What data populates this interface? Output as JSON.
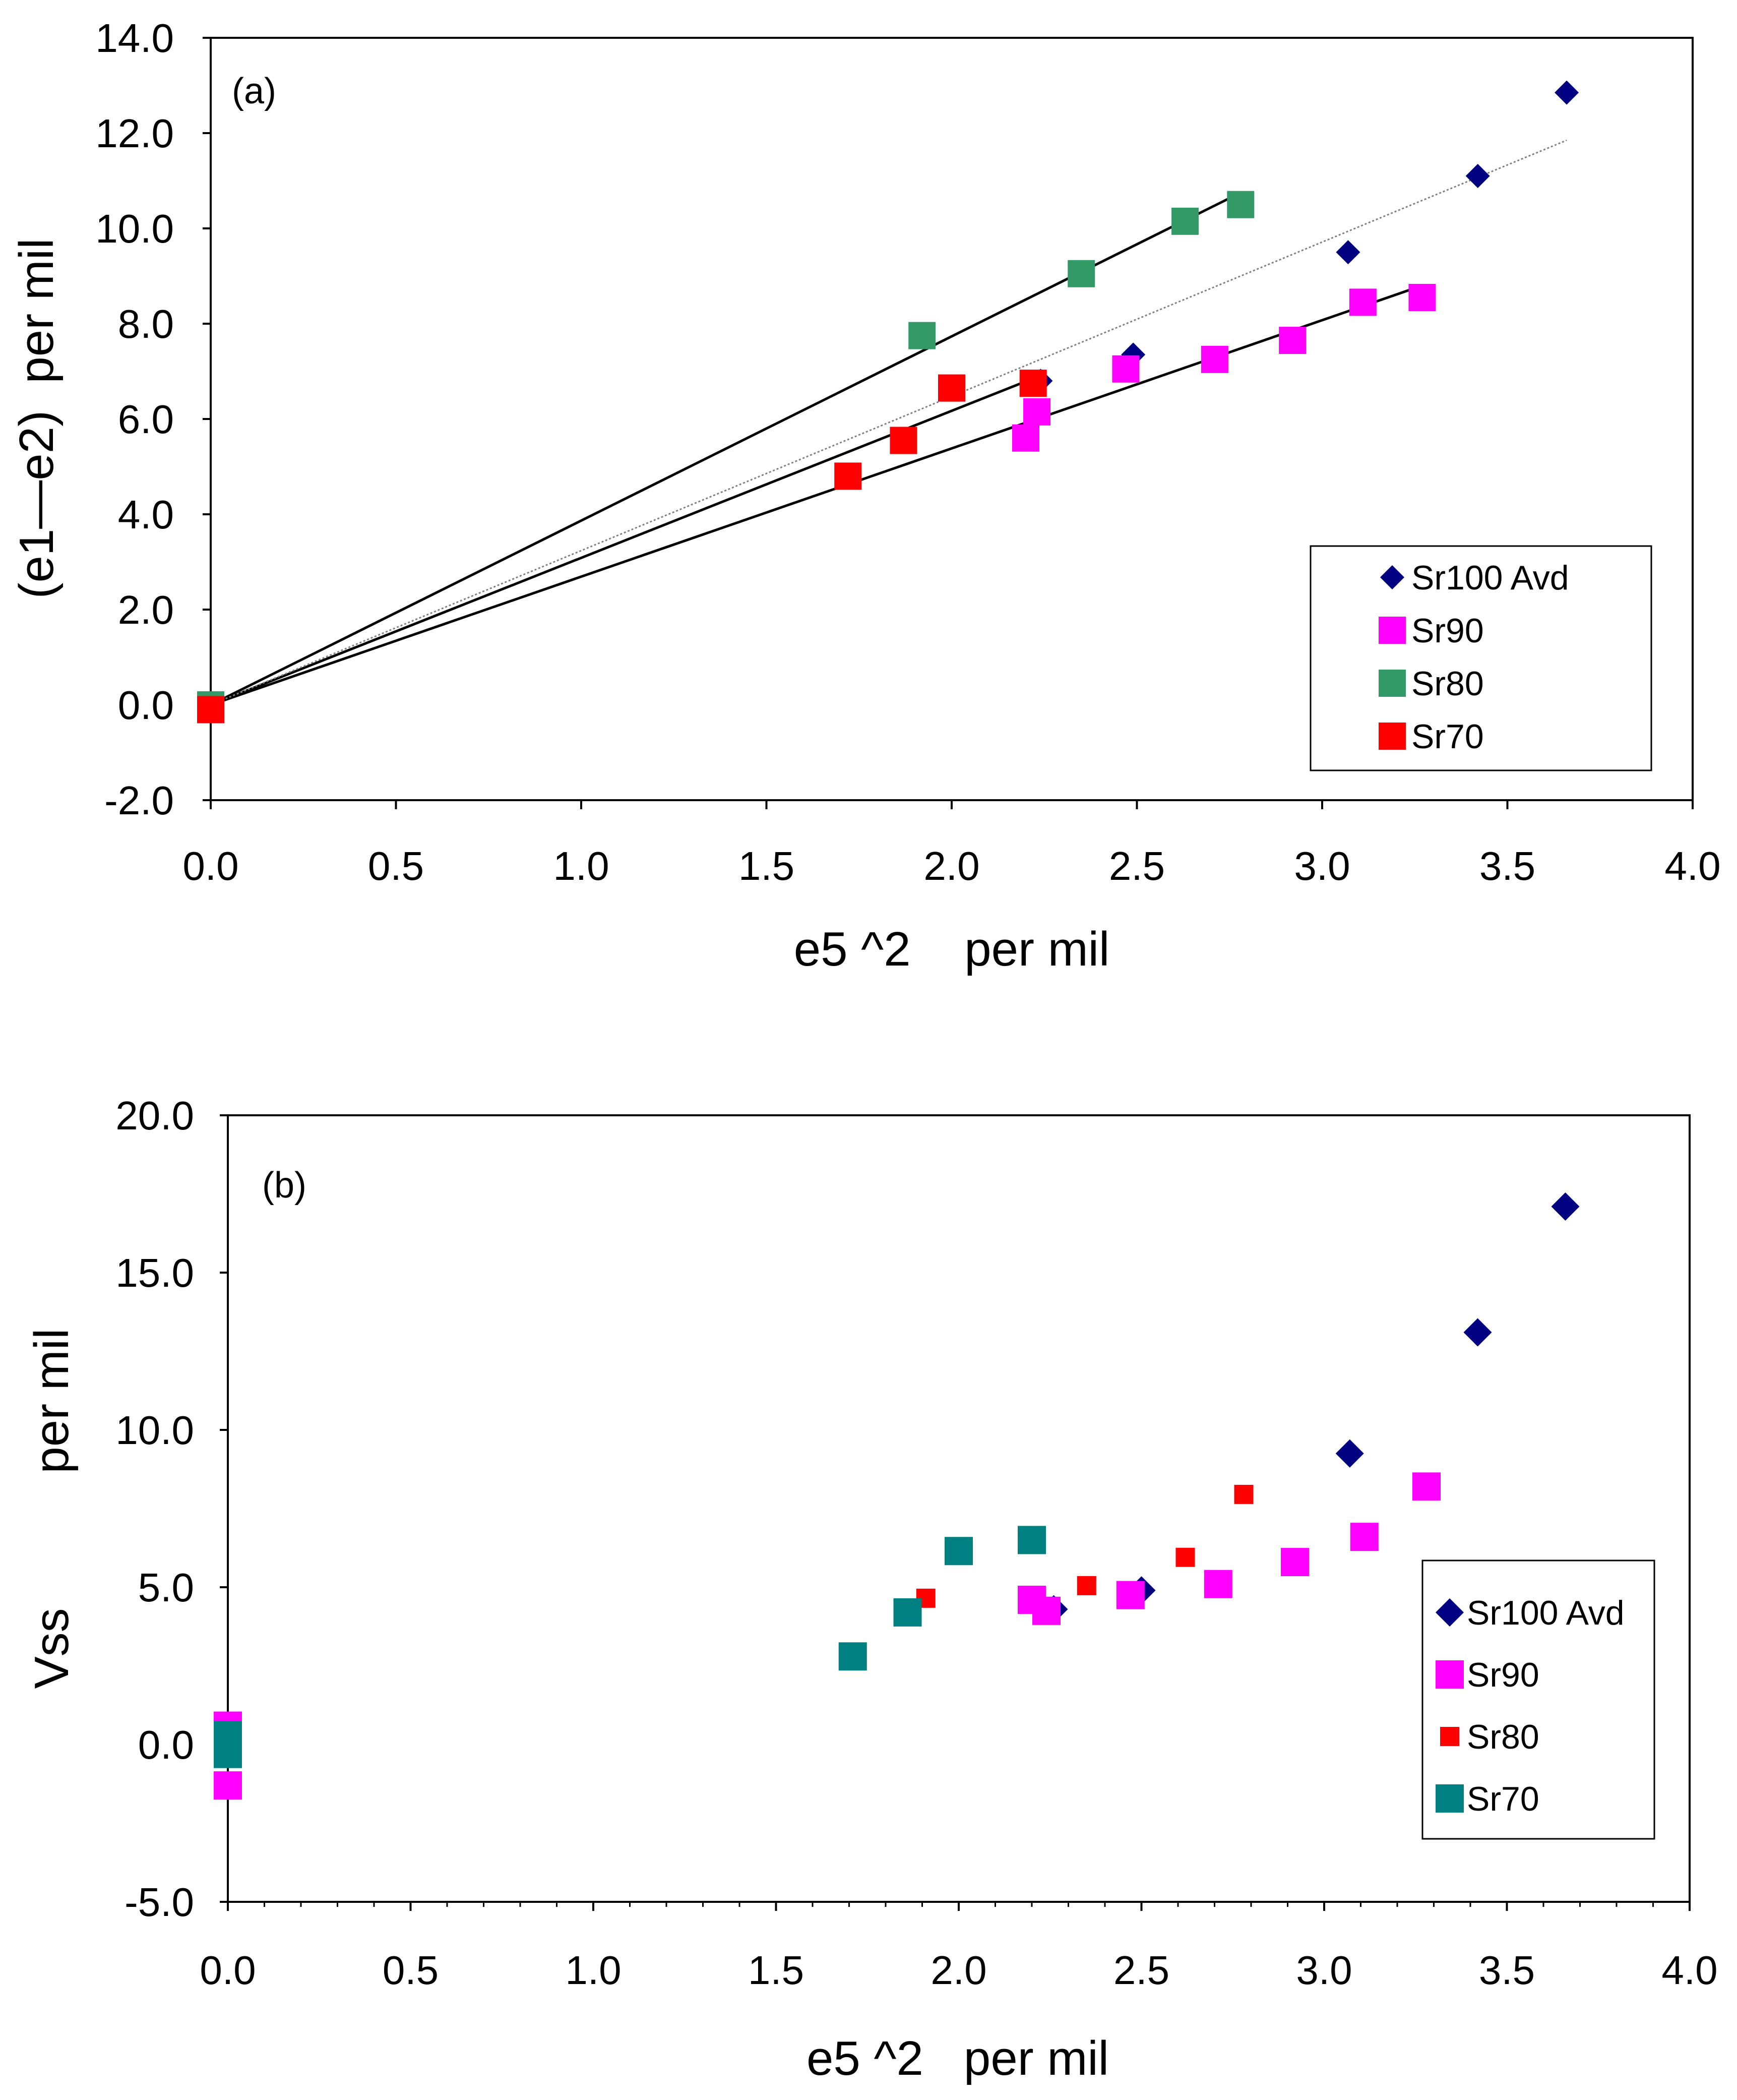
{
  "chart_data": [
    {
      "type": "scatter",
      "panel_label": "(a)",
      "xlabel": "e5 ^2    per mil",
      "ylabel": "(e1—e2)  per mil",
      "xlim": [
        0,
        4
      ],
      "ylim": [
        -2,
        14
      ],
      "x_ticks": [
        "0.0",
        "0.5",
        "1.0",
        "1.5",
        "2.0",
        "2.5",
        "3.0",
        "3.5",
        "4.0"
      ],
      "y_ticks": [
        "14.0",
        "12.0",
        "10.0",
        "8.0",
        "6.0",
        "4.0",
        "2.0",
        "0.0",
        "-2.0"
      ],
      "legend_position": "bottom-right",
      "series": [
        {
          "name": "Sr100 Avd",
          "marker": "diamond",
          "color": "#000080",
          "points": [
            [
              0.0,
              0.0
            ],
            [
              2.24,
              6.8
            ],
            [
              2.49,
              7.35
            ],
            [
              3.07,
              9.5
            ],
            [
              3.42,
              11.1
            ],
            [
              3.66,
              12.85
            ]
          ]
        },
        {
          "name": "Sr90",
          "marker": "square",
          "color": "#ff00ff",
          "points": [
            [
              0.0,
              0.0
            ],
            [
              2.2,
              5.6
            ],
            [
              2.23,
              6.15
            ],
            [
              2.47,
              7.05
            ],
            [
              2.71,
              7.25
            ],
            [
              2.92,
              7.65
            ],
            [
              3.11,
              8.45
            ],
            [
              3.27,
              8.55
            ]
          ]
        },
        {
          "name": "Sr80",
          "marker": "square",
          "color": "#339966",
          "points": [
            [
              0.0,
              0.0
            ],
            [
              1.92,
              7.75
            ],
            [
              2.35,
              9.05
            ],
            [
              2.63,
              10.15
            ],
            [
              2.78,
              10.5
            ]
          ]
        },
        {
          "name": "Sr70",
          "marker": "square",
          "color": "#ff0000",
          "points": [
            [
              0.0,
              -0.1
            ],
            [
              1.72,
              4.8
            ],
            [
              1.87,
              5.55
            ],
            [
              2.0,
              6.65
            ],
            [
              2.22,
              6.75
            ]
          ]
        }
      ],
      "fit_lines": [
        {
          "from": [
            0.0,
            0.0
          ],
          "to": [
            2.78,
            10.75
          ],
          "color": "#000000",
          "style": "solid"
        },
        {
          "from": [
            0.0,
            0.0
          ],
          "to": [
            2.22,
            6.85
          ],
          "color": "#000000",
          "style": "solid"
        },
        {
          "from": [
            0.0,
            0.0
          ],
          "to": [
            3.27,
            8.8
          ],
          "color": "#000000",
          "style": "solid"
        },
        {
          "from": [
            0.0,
            0.0
          ],
          "to": [
            3.66,
            11.85
          ],
          "color": "#808080",
          "style": "dotted"
        }
      ]
    },
    {
      "type": "scatter",
      "panel_label": "(b)",
      "xlabel": "e5 ^2   per mil",
      "ylabel": "Vss          per mil",
      "xlim": [
        0,
        4
      ],
      "ylim": [
        -5,
        20
      ],
      "x_ticks": [
        "0.0",
        "0.5",
        "1.0",
        "1.5",
        "2.0",
        "2.5",
        "3.0",
        "3.5",
        "4.0"
      ],
      "y_ticks": [
        "20.0",
        "15.0",
        "10.0",
        "5.0",
        "0.0",
        "-5.0"
      ],
      "legend_position": "bottom-right",
      "series": [
        {
          "name": "Sr100 Avd",
          "marker": "diamond",
          "color": "#000080",
          "points": [
            [
              0.0,
              0.2
            ],
            [
              2.26,
              4.3
            ],
            [
              2.5,
              4.9
            ],
            [
              3.07,
              9.25
            ],
            [
              3.42,
              13.1
            ],
            [
              3.66,
              17.1
            ]
          ]
        },
        {
          "name": "Sr90",
          "marker": "square",
          "color": "#ff00ff",
          "points": [
            [
              0.0,
              0.6
            ],
            [
              0.0,
              -1.3
            ],
            [
              2.2,
              4.6
            ],
            [
              2.24,
              4.25
            ],
            [
              2.47,
              4.75
            ],
            [
              2.71,
              5.1
            ],
            [
              2.92,
              5.8
            ],
            [
              3.11,
              6.6
            ],
            [
              3.28,
              8.2
            ]
          ]
        },
        {
          "name": "Sr80",
          "marker": "square-small",
          "color": "#ff0000",
          "points": [
            [
              1.91,
              4.65
            ],
            [
              2.35,
              5.05
            ],
            [
              2.62,
              5.95
            ],
            [
              2.78,
              7.95
            ]
          ]
        },
        {
          "name": "Sr70",
          "marker": "square",
          "color": "#008080",
          "points": [
            [
              0.0,
              0.3
            ],
            [
              0.0,
              -0.3
            ],
            [
              1.71,
              2.8
            ],
            [
              1.86,
              4.2
            ],
            [
              2.0,
              6.15
            ],
            [
              2.2,
              6.5
            ]
          ]
        }
      ]
    }
  ]
}
